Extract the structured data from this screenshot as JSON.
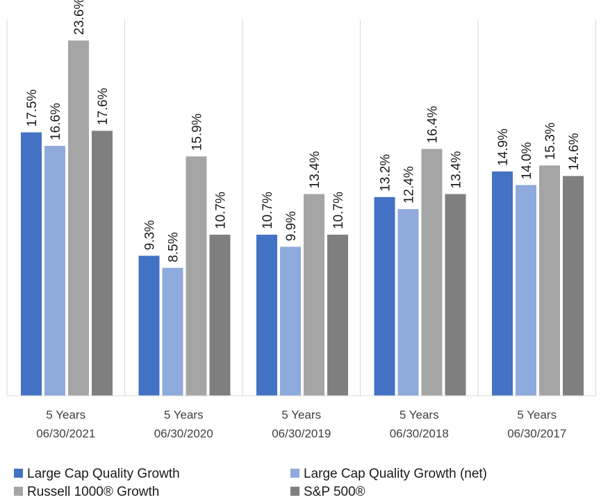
{
  "chart_data": {
    "type": "bar",
    "title": "",
    "xlabel": "",
    "ylabel": "",
    "ylim": [
      0,
      25
    ],
    "grid": false,
    "legend_position": "bottom",
    "categories": [
      {
        "line1": "5 Years",
        "line2": "06/30/2021"
      },
      {
        "line1": "5 Years",
        "line2": "06/30/2020"
      },
      {
        "line1": "5 Years",
        "line2": "06/30/2019"
      },
      {
        "line1": "5 Years",
        "line2": "06/30/2018"
      },
      {
        "line1": "5 Years",
        "line2": "06/30/2017"
      }
    ],
    "series": [
      {
        "name": "Large Cap Quality Growth",
        "color": "#4472C4",
        "values": [
          17.5,
          9.3,
          10.7,
          13.2,
          14.9
        ],
        "labels": [
          "17.5%",
          "9.3%",
          "10.7%",
          "13.2%",
          "14.9%"
        ]
      },
      {
        "name": "Large Cap Quality Growth (net)",
        "color": "#8FAADC",
        "values": [
          16.6,
          8.5,
          9.9,
          12.4,
          14.0
        ],
        "labels": [
          "16.6%",
          "8.5%",
          "9.9%",
          "12.4%",
          "14.0%"
        ]
      },
      {
        "name": "Russell 1000® Growth",
        "color": "#A5A5A5",
        "values": [
          23.6,
          15.9,
          13.4,
          16.4,
          15.3
        ],
        "labels": [
          "23.6%",
          "15.9%",
          "13.4%",
          "16.4%",
          "15.3%"
        ]
      },
      {
        "name": "S&P 500®",
        "color": "#7F7F7F",
        "values": [
          17.6,
          10.7,
          10.7,
          13.4,
          14.6
        ],
        "labels": [
          "17.6%",
          "10.7%",
          "10.7%",
          "13.4%",
          "14.6%"
        ]
      }
    ]
  }
}
